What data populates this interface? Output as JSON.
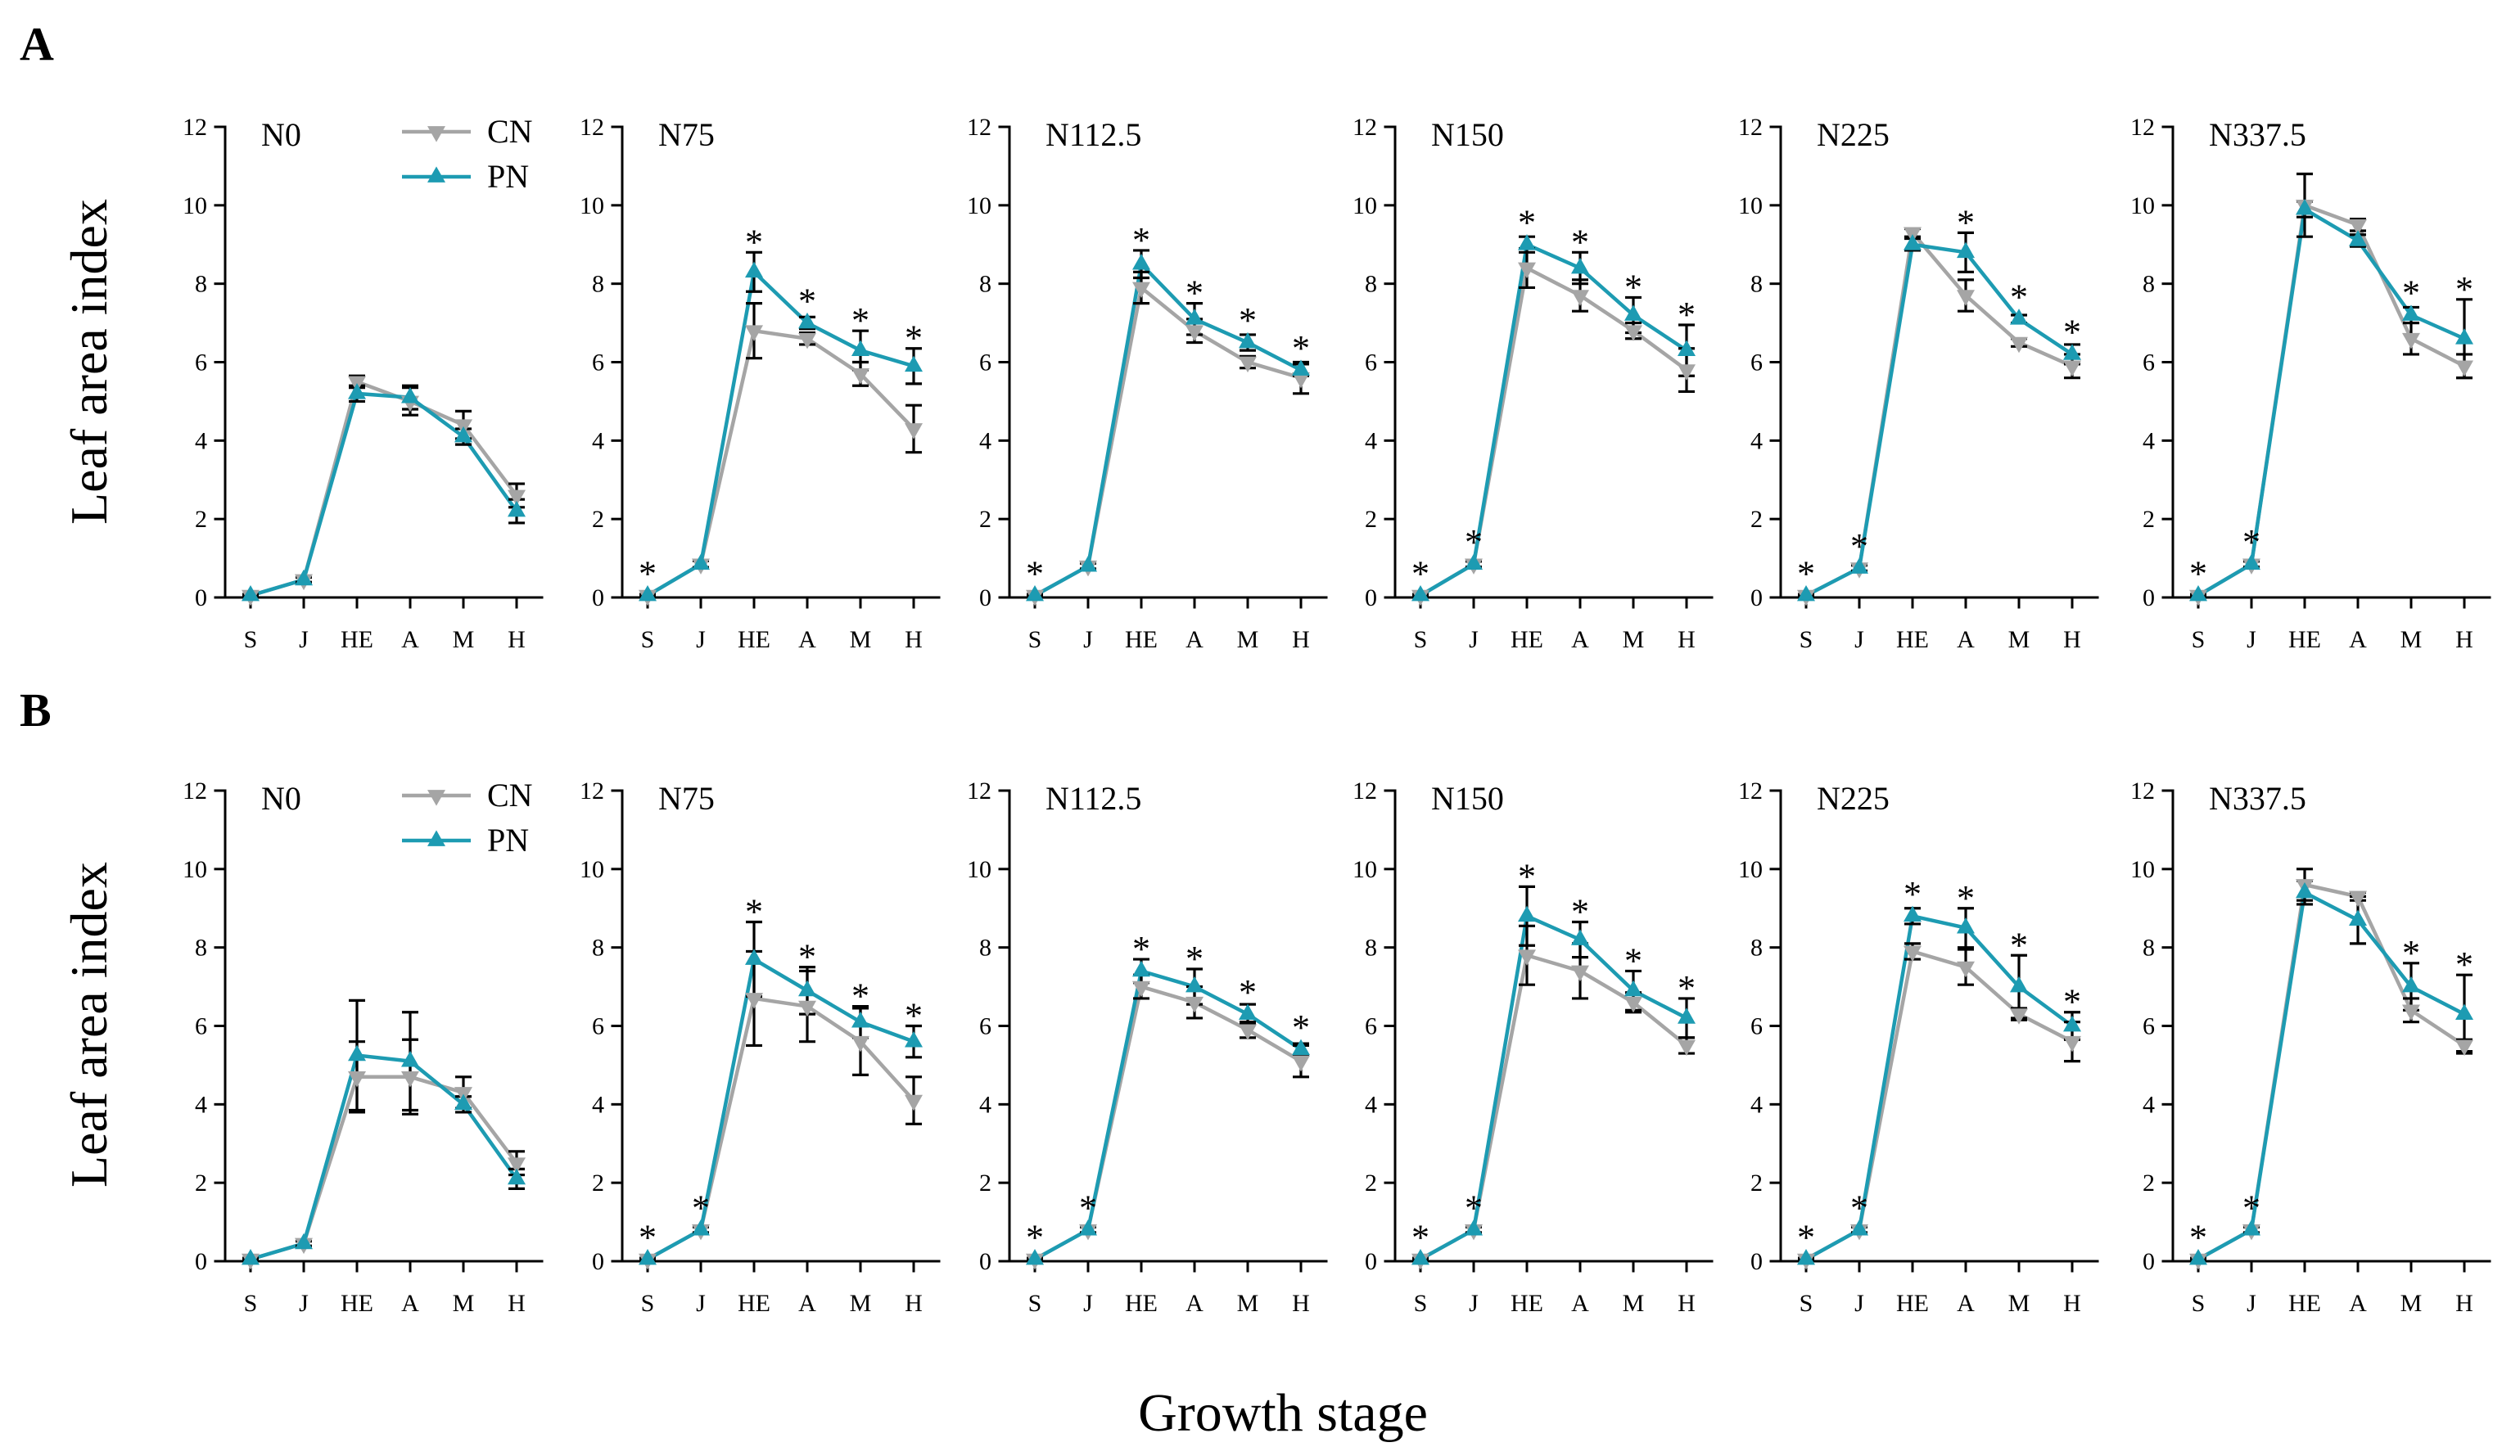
{
  "figure": {
    "groups": [
      {
        "label": "A",
        "ylabel": "Leaf area index"
      },
      {
        "label": "B",
        "ylabel": "Leaf area index"
      }
    ],
    "xlabel": "Growth stage",
    "series_style": [
      {
        "marker": "triangle-down",
        "color": "#a5a5a5"
      },
      {
        "marker": "triangle-up",
        "color": "#1d9bb2"
      }
    ],
    "error_bar_color": "#000000",
    "sig_marker": "*"
  },
  "chart_data": [
    {
      "type": "line",
      "title": "N0",
      "categories": [
        "S",
        "J",
        "HE",
        "A",
        "M",
        "H"
      ],
      "ylim": [
        0,
        12
      ],
      "yticks": [
        0,
        2,
        4,
        6,
        8,
        10,
        12
      ],
      "series": [
        {
          "name": "CN",
          "values": [
            0.05,
            0.45,
            5.5,
            5.0,
            4.4,
            2.6
          ],
          "errors": [
            0.03,
            0.06,
            0.15,
            0.35,
            0.35,
            0.3
          ]
        },
        {
          "name": "PN",
          "values": [
            0.05,
            0.45,
            5.2,
            5.1,
            4.1,
            2.2
          ],
          "errors": [
            0.03,
            0.06,
            0.2,
            0.3,
            0.2,
            0.3
          ]
        }
      ],
      "significant": [
        false,
        false,
        false,
        false,
        false,
        false
      ]
    },
    {
      "type": "line",
      "title": "N75",
      "categories": [
        "S",
        "J",
        "HE",
        "A",
        "M",
        "H"
      ],
      "ylim": [
        0,
        12
      ],
      "yticks": [
        0,
        2,
        4,
        6,
        8,
        10,
        12
      ],
      "series": [
        {
          "name": "CN",
          "values": [
            0.05,
            0.85,
            6.8,
            6.6,
            5.7,
            4.3
          ],
          "errors": [
            0.03,
            0.08,
            0.7,
            0.15,
            0.3,
            0.6
          ]
        },
        {
          "name": "PN",
          "values": [
            0.05,
            0.85,
            8.3,
            7.0,
            6.3,
            5.9
          ],
          "errors": [
            0.03,
            0.08,
            0.5,
            0.15,
            0.5,
            0.45
          ]
        }
      ],
      "significant": [
        true,
        false,
        true,
        true,
        true,
        true
      ]
    },
    {
      "type": "line",
      "title": "N112.5",
      "categories": [
        "S",
        "J",
        "HE",
        "A",
        "M",
        "H"
      ],
      "ylim": [
        0,
        12
      ],
      "yticks": [
        0,
        2,
        4,
        6,
        8,
        10,
        12
      ],
      "series": [
        {
          "name": "CN",
          "values": [
            0.05,
            0.8,
            7.9,
            6.8,
            6.0,
            5.6
          ],
          "errors": [
            0.03,
            0.07,
            0.4,
            0.3,
            0.15,
            0.4
          ]
        },
        {
          "name": "PN",
          "values": [
            0.05,
            0.8,
            8.5,
            7.1,
            6.5,
            5.8
          ],
          "errors": [
            0.03,
            0.07,
            0.35,
            0.4,
            0.2,
            0.15
          ]
        }
      ],
      "significant": [
        true,
        false,
        true,
        true,
        true,
        true
      ]
    },
    {
      "type": "line",
      "title": "N150",
      "categories": [
        "S",
        "J",
        "HE",
        "A",
        "M",
        "H"
      ],
      "ylim": [
        0,
        12
      ],
      "yticks": [
        0,
        2,
        4,
        6,
        8,
        10,
        12
      ],
      "series": [
        {
          "name": "CN",
          "values": [
            0.05,
            0.85,
            8.4,
            7.7,
            6.8,
            5.8
          ],
          "errors": [
            0.03,
            0.07,
            0.5,
            0.4,
            0.2,
            0.55
          ]
        },
        {
          "name": "PN",
          "values": [
            0.05,
            0.85,
            9.0,
            8.4,
            7.2,
            6.3
          ],
          "errors": [
            0.03,
            0.07,
            0.2,
            0.4,
            0.45,
            0.65
          ]
        }
      ],
      "significant": [
        true,
        true,
        true,
        true,
        true,
        true
      ]
    },
    {
      "type": "line",
      "title": "N225",
      "categories": [
        "S",
        "J",
        "HE",
        "A",
        "M",
        "H"
      ],
      "ylim": [
        0,
        12
      ],
      "yticks": [
        0,
        2,
        4,
        6,
        8,
        10,
        12
      ],
      "series": [
        {
          "name": "CN",
          "values": [
            0.05,
            0.75,
            9.3,
            7.7,
            6.5,
            5.9
          ],
          "errors": [
            0.03,
            0.07,
            0.1,
            0.4,
            0.1,
            0.3
          ]
        },
        {
          "name": "PN",
          "values": [
            0.05,
            0.75,
            9.0,
            8.8,
            7.1,
            6.2
          ],
          "errors": [
            0.03,
            0.07,
            0.15,
            0.5,
            0.1,
            0.25
          ]
        }
      ],
      "significant": [
        true,
        true,
        false,
        true,
        true,
        true
      ]
    },
    {
      "type": "line",
      "title": "N337.5",
      "categories": [
        "S",
        "J",
        "HE",
        "A",
        "M",
        "H"
      ],
      "ylim": [
        0,
        12
      ],
      "yticks": [
        0,
        2,
        4,
        6,
        8,
        10,
        12
      ],
      "series": [
        {
          "name": "CN",
          "values": [
            0.05,
            0.85,
            10.0,
            9.5,
            6.6,
            5.9
          ],
          "errors": [
            0.03,
            0.07,
            0.8,
            0.15,
            0.4,
            0.3
          ]
        },
        {
          "name": "PN",
          "values": [
            0.05,
            0.85,
            9.9,
            9.1,
            7.2,
            6.6
          ],
          "errors": [
            0.03,
            0.07,
            0.2,
            0.15,
            0.2,
            1.0
          ]
        }
      ],
      "significant": [
        true,
        true,
        false,
        false,
        true,
        true
      ]
    },
    {
      "type": "line",
      "title": "N0",
      "categories": [
        "S",
        "J",
        "HE",
        "A",
        "M",
        "H"
      ],
      "ylim": [
        0,
        12
      ],
      "yticks": [
        0,
        2,
        4,
        6,
        8,
        10,
        12
      ],
      "series": [
        {
          "name": "CN",
          "values": [
            0.05,
            0.45,
            4.7,
            4.7,
            4.3,
            2.5
          ],
          "errors": [
            0.03,
            0.06,
            0.9,
            0.95,
            0.4,
            0.3
          ]
        },
        {
          "name": "PN",
          "values": [
            0.05,
            0.45,
            5.25,
            5.1,
            4.0,
            2.1
          ],
          "errors": [
            0.03,
            0.06,
            1.4,
            1.25,
            0.2,
            0.25
          ]
        }
      ],
      "significant": [
        false,
        false,
        false,
        false,
        false,
        false
      ]
    },
    {
      "type": "line",
      "title": "N75",
      "categories": [
        "S",
        "J",
        "HE",
        "A",
        "M",
        "H"
      ],
      "ylim": [
        0,
        12
      ],
      "yticks": [
        0,
        2,
        4,
        6,
        8,
        10,
        12
      ],
      "series": [
        {
          "name": "CN",
          "values": [
            0.05,
            0.8,
            6.7,
            6.5,
            5.6,
            4.1
          ],
          "errors": [
            0.03,
            0.07,
            1.2,
            0.9,
            0.85,
            0.6
          ]
        },
        {
          "name": "PN",
          "values": [
            0.05,
            0.8,
            7.7,
            6.9,
            6.1,
            5.6
          ],
          "errors": [
            0.03,
            0.07,
            0.95,
            0.6,
            0.4,
            0.4
          ]
        }
      ],
      "significant": [
        true,
        true,
        true,
        true,
        true,
        true
      ]
    },
    {
      "type": "line",
      "title": "N112.5",
      "categories": [
        "S",
        "J",
        "HE",
        "A",
        "M",
        "H"
      ],
      "ylim": [
        0,
        12
      ],
      "yticks": [
        0,
        2,
        4,
        6,
        8,
        10,
        12
      ],
      "series": [
        {
          "name": "CN",
          "values": [
            0.05,
            0.8,
            7.0,
            6.6,
            5.9,
            5.1
          ],
          "errors": [
            0.03,
            0.07,
            0.3,
            0.4,
            0.2,
            0.4
          ]
        },
        {
          "name": "PN",
          "values": [
            0.05,
            0.8,
            7.4,
            7.0,
            6.3,
            5.4
          ],
          "errors": [
            0.03,
            0.07,
            0.3,
            0.45,
            0.25,
            0.15
          ]
        }
      ],
      "significant": [
        true,
        true,
        true,
        true,
        true,
        true
      ]
    },
    {
      "type": "line",
      "title": "N150",
      "categories": [
        "S",
        "J",
        "HE",
        "A",
        "M",
        "H"
      ],
      "ylim": [
        0,
        12
      ],
      "yticks": [
        0,
        2,
        4,
        6,
        8,
        10,
        12
      ],
      "series": [
        {
          "name": "CN",
          "values": [
            0.05,
            0.8,
            7.8,
            7.4,
            6.6,
            5.5
          ],
          "errors": [
            0.03,
            0.07,
            0.75,
            0.7,
            0.25,
            0.2
          ]
        },
        {
          "name": "PN",
          "values": [
            0.05,
            0.8,
            8.8,
            8.2,
            6.9,
            6.2
          ],
          "errors": [
            0.03,
            0.07,
            0.75,
            0.45,
            0.5,
            0.5
          ]
        }
      ],
      "significant": [
        true,
        true,
        true,
        true,
        true,
        true
      ]
    },
    {
      "type": "line",
      "title": "N225",
      "categories": [
        "S",
        "J",
        "HE",
        "A",
        "M",
        "H"
      ],
      "ylim": [
        0,
        12
      ],
      "yticks": [
        0,
        2,
        4,
        6,
        8,
        10,
        12
      ],
      "series": [
        {
          "name": "CN",
          "values": [
            0.05,
            0.8,
            7.9,
            7.5,
            6.3,
            5.6
          ],
          "errors": [
            0.03,
            0.07,
            0.2,
            0.45,
            0.15,
            0.5
          ]
        },
        {
          "name": "PN",
          "values": [
            0.05,
            0.8,
            8.8,
            8.5,
            7.0,
            6.0
          ],
          "errors": [
            0.03,
            0.07,
            0.2,
            0.5,
            0.8,
            0.35
          ]
        }
      ],
      "significant": [
        true,
        true,
        true,
        true,
        true,
        true
      ]
    },
    {
      "type": "line",
      "title": "N337.5",
      "categories": [
        "S",
        "J",
        "HE",
        "A",
        "M",
        "H"
      ],
      "ylim": [
        0,
        12
      ],
      "yticks": [
        0,
        2,
        4,
        6,
        8,
        10,
        12
      ],
      "series": [
        {
          "name": "CN",
          "values": [
            0.05,
            0.8,
            9.6,
            9.3,
            6.4,
            5.5
          ],
          "errors": [
            0.03,
            0.07,
            0.4,
            0.1,
            0.3,
            0.15
          ]
        },
        {
          "name": "PN",
          "values": [
            0.05,
            0.8,
            9.4,
            8.7,
            7.0,
            6.3
          ],
          "errors": [
            0.03,
            0.07,
            0.3,
            0.6,
            0.6,
            1.0
          ]
        }
      ],
      "significant": [
        true,
        true,
        false,
        false,
        true,
        true
      ]
    }
  ]
}
